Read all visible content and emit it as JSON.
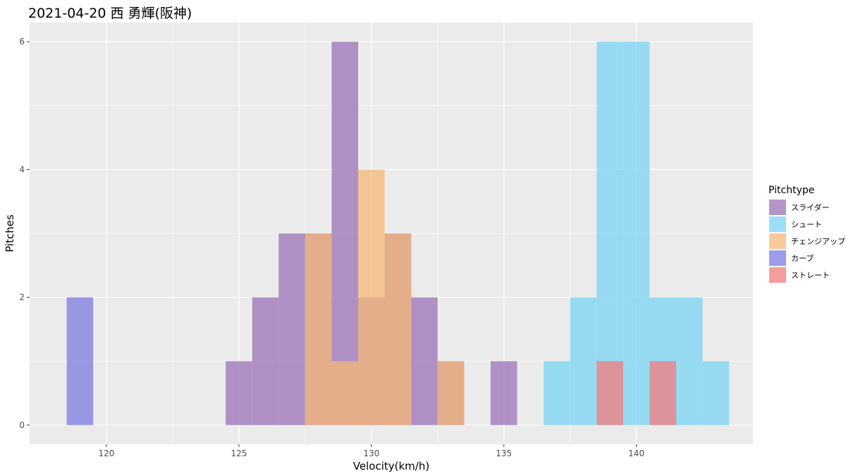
{
  "chart_data": {
    "type": "bar",
    "title": "2021-04-20 西 勇輝(阪神)",
    "xlabel": "Velocity(km/h)",
    "ylabel": "Pitches",
    "xlim": [
      117.1,
      144.4
    ],
    "ylim": [
      -0.3,
      6.3
    ],
    "x_ticks": [
      120,
      125,
      130,
      135,
      140
    ],
    "y_ticks": [
      0,
      2,
      4,
      6
    ],
    "bin_width": 1,
    "grid": true,
    "legend_title": "Pitchtype",
    "legend_position": "right",
    "series": [
      {
        "name": "スライダー",
        "color": "#9b72b8",
        "bins": [
          {
            "x": 125,
            "count": 1
          },
          {
            "x": 126,
            "count": 2
          },
          {
            "x": 127,
            "count": 3
          },
          {
            "x": 128,
            "count": 3
          },
          {
            "x": 129,
            "count": 6
          },
          {
            "x": 130,
            "count": 2
          },
          {
            "x": 131,
            "count": 3
          },
          {
            "x": 132,
            "count": 2
          },
          {
            "x": 133,
            "count": 1
          },
          {
            "x": 135,
            "count": 1
          }
        ]
      },
      {
        "name": "シュート",
        "color": "#78d4f4",
        "bins": [
          {
            "x": 137,
            "count": 1
          },
          {
            "x": 138,
            "count": 2
          },
          {
            "x": 139,
            "count": 6
          },
          {
            "x": 140,
            "count": 6
          },
          {
            "x": 141,
            "count": 2
          },
          {
            "x": 142,
            "count": 2
          },
          {
            "x": 143,
            "count": 1
          }
        ]
      },
      {
        "name": "チェンジアップ",
        "color": "#f5b877",
        "bins": [
          {
            "x": 128,
            "count": 3
          },
          {
            "x": 129,
            "count": 1
          },
          {
            "x": 130,
            "count": 4
          },
          {
            "x": 131,
            "count": 3
          },
          {
            "x": 133,
            "count": 1
          }
        ]
      },
      {
        "name": "カーブ",
        "color": "#7b7be0",
        "bins": [
          {
            "x": 119,
            "count": 2
          }
        ]
      },
      {
        "name": "ストレート",
        "color": "#f47b7b",
        "bins": [
          {
            "x": 139,
            "count": 1
          },
          {
            "x": 141,
            "count": 1
          }
        ]
      }
    ]
  }
}
